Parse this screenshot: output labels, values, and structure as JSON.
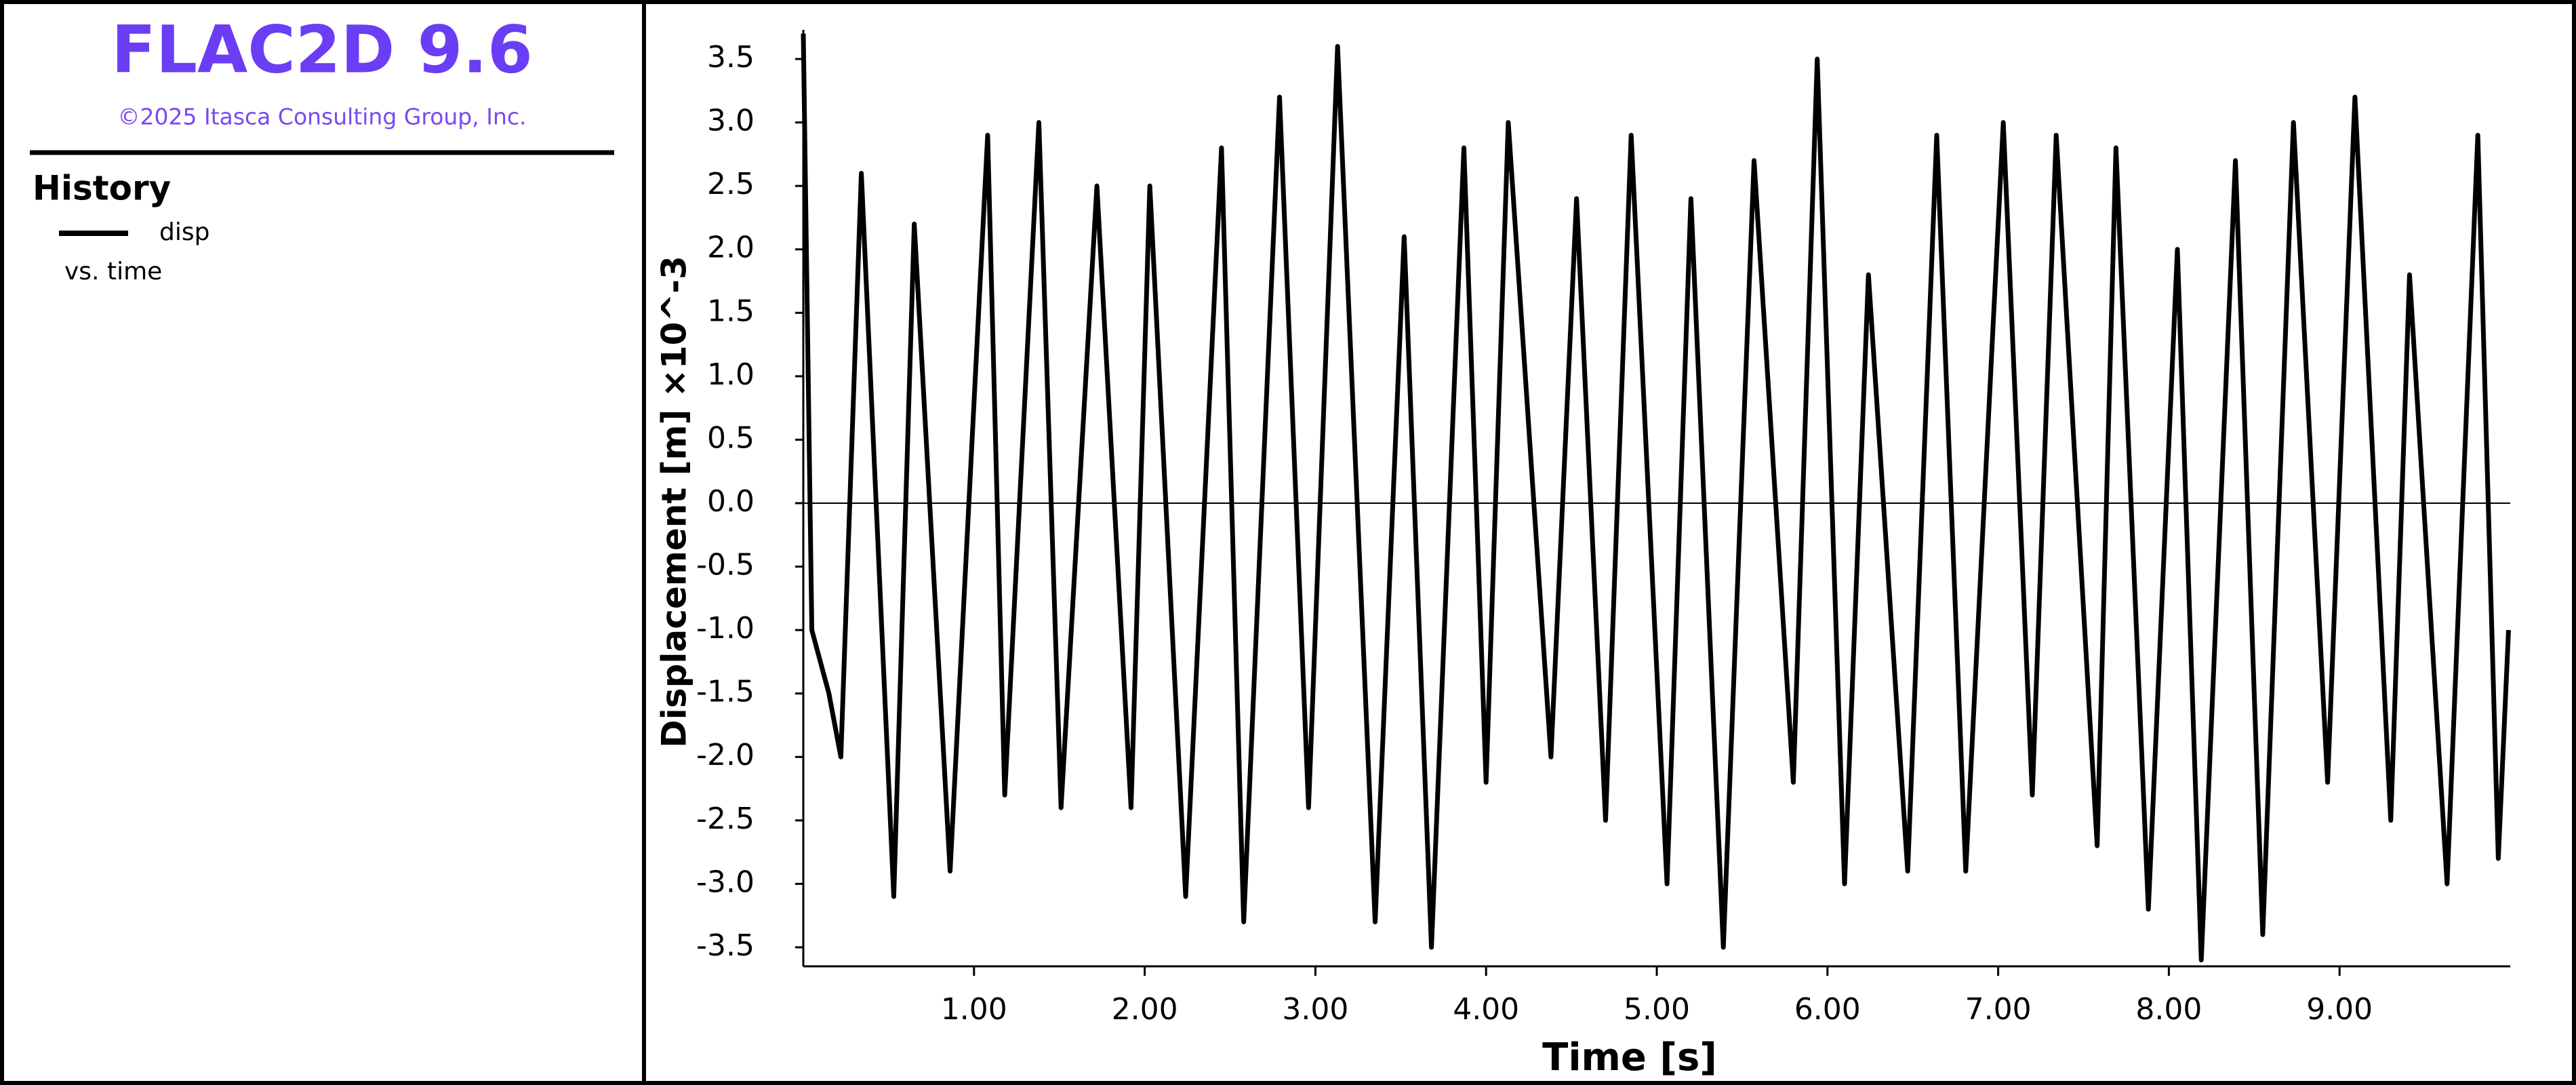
{
  "header": {
    "title": "FLAC2D 9.6",
    "copyright": "©2025 Itasca Consulting Group, Inc."
  },
  "legend": {
    "title": "History",
    "entry": "disp",
    "note": "vs. time"
  },
  "chart_data": {
    "type": "line",
    "xlabel": "Time [s]",
    "ylabel": "Displacement [m] ×10^-3",
    "x": [
      0,
      0.05,
      0.15,
      0.22,
      0.34,
      0.53,
      0.65,
      0.86,
      1.08,
      1.18,
      1.38,
      1.51,
      1.72,
      1.92,
      2.03,
      2.24,
      2.45,
      2.58,
      2.79,
      2.96,
      3.13,
      3.35,
      3.52,
      3.68,
      3.87,
      4.0,
      4.13,
      4.38,
      4.53,
      4.7,
      4.85,
      5.06,
      5.2,
      5.39,
      5.57,
      5.8,
      5.94,
      6.1,
      6.24,
      6.47,
      6.64,
      6.81,
      7.03,
      7.2,
      7.34,
      7.58,
      7.69,
      7.88,
      8.05,
      8.19,
      8.39,
      8.55,
      8.73,
      8.93,
      9.09,
      9.3,
      9.41,
      9.63,
      9.81,
      9.93,
      9.99
    ],
    "series": [
      {
        "name": "disp",
        "color": "#000000",
        "values": [
          3.7,
          -1.0,
          -1.5,
          -2.0,
          2.6,
          -3.1,
          2.2,
          -2.9,
          2.9,
          -2.3,
          3.0,
          -2.4,
          2.5,
          -2.4,
          2.5,
          -3.1,
          2.8,
          -3.3,
          3.2,
          -2.4,
          3.6,
          -3.3,
          2.1,
          -3.5,
          2.8,
          -2.2,
          3.0,
          -2.0,
          2.4,
          -2.5,
          2.9,
          -3.0,
          2.4,
          -3.5,
          2.7,
          -2.2,
          3.5,
          -3.0,
          1.8,
          -2.9,
          2.9,
          -2.9,
          3.0,
          -2.3,
          2.9,
          -2.7,
          2.8,
          -3.2,
          2.0,
          -3.6,
          2.7,
          -3.4,
          3.0,
          -2.2,
          3.2,
          -2.5,
          1.8,
          -3.0,
          2.9,
          -2.8,
          -1.0
        ]
      }
    ],
    "xlim": [
      0,
      10
    ],
    "ylim": [
      -3.65,
      3.73
    ],
    "xticks": [
      {
        "value": 1,
        "label": "1.00"
      },
      {
        "value": 2,
        "label": "2.00"
      },
      {
        "value": 3,
        "label": "3.00"
      },
      {
        "value": 4,
        "label": "4.00"
      },
      {
        "value": 5,
        "label": "5.00"
      },
      {
        "value": 6,
        "label": "6.00"
      },
      {
        "value": 7,
        "label": "7.00"
      },
      {
        "value": 8,
        "label": "8.00"
      },
      {
        "value": 9,
        "label": "9.00"
      }
    ],
    "yticks": [
      -3.5,
      {
        "value": -3,
        "label": "-3.0"
      },
      -2.5,
      {
        "value": -2,
        "label": "-2.0"
      },
      -1.5,
      {
        "value": -1,
        "label": "-1.0"
      },
      -0.5,
      {
        "value": 0,
        "label": "0.0"
      },
      0.5,
      {
        "value": 1,
        "label": "1.0"
      },
      1.5,
      {
        "value": 2,
        "label": "2.0"
      },
      2.5,
      {
        "value": 3,
        "label": "3.0"
      },
      3.5
    ],
    "zero_line": true
  }
}
